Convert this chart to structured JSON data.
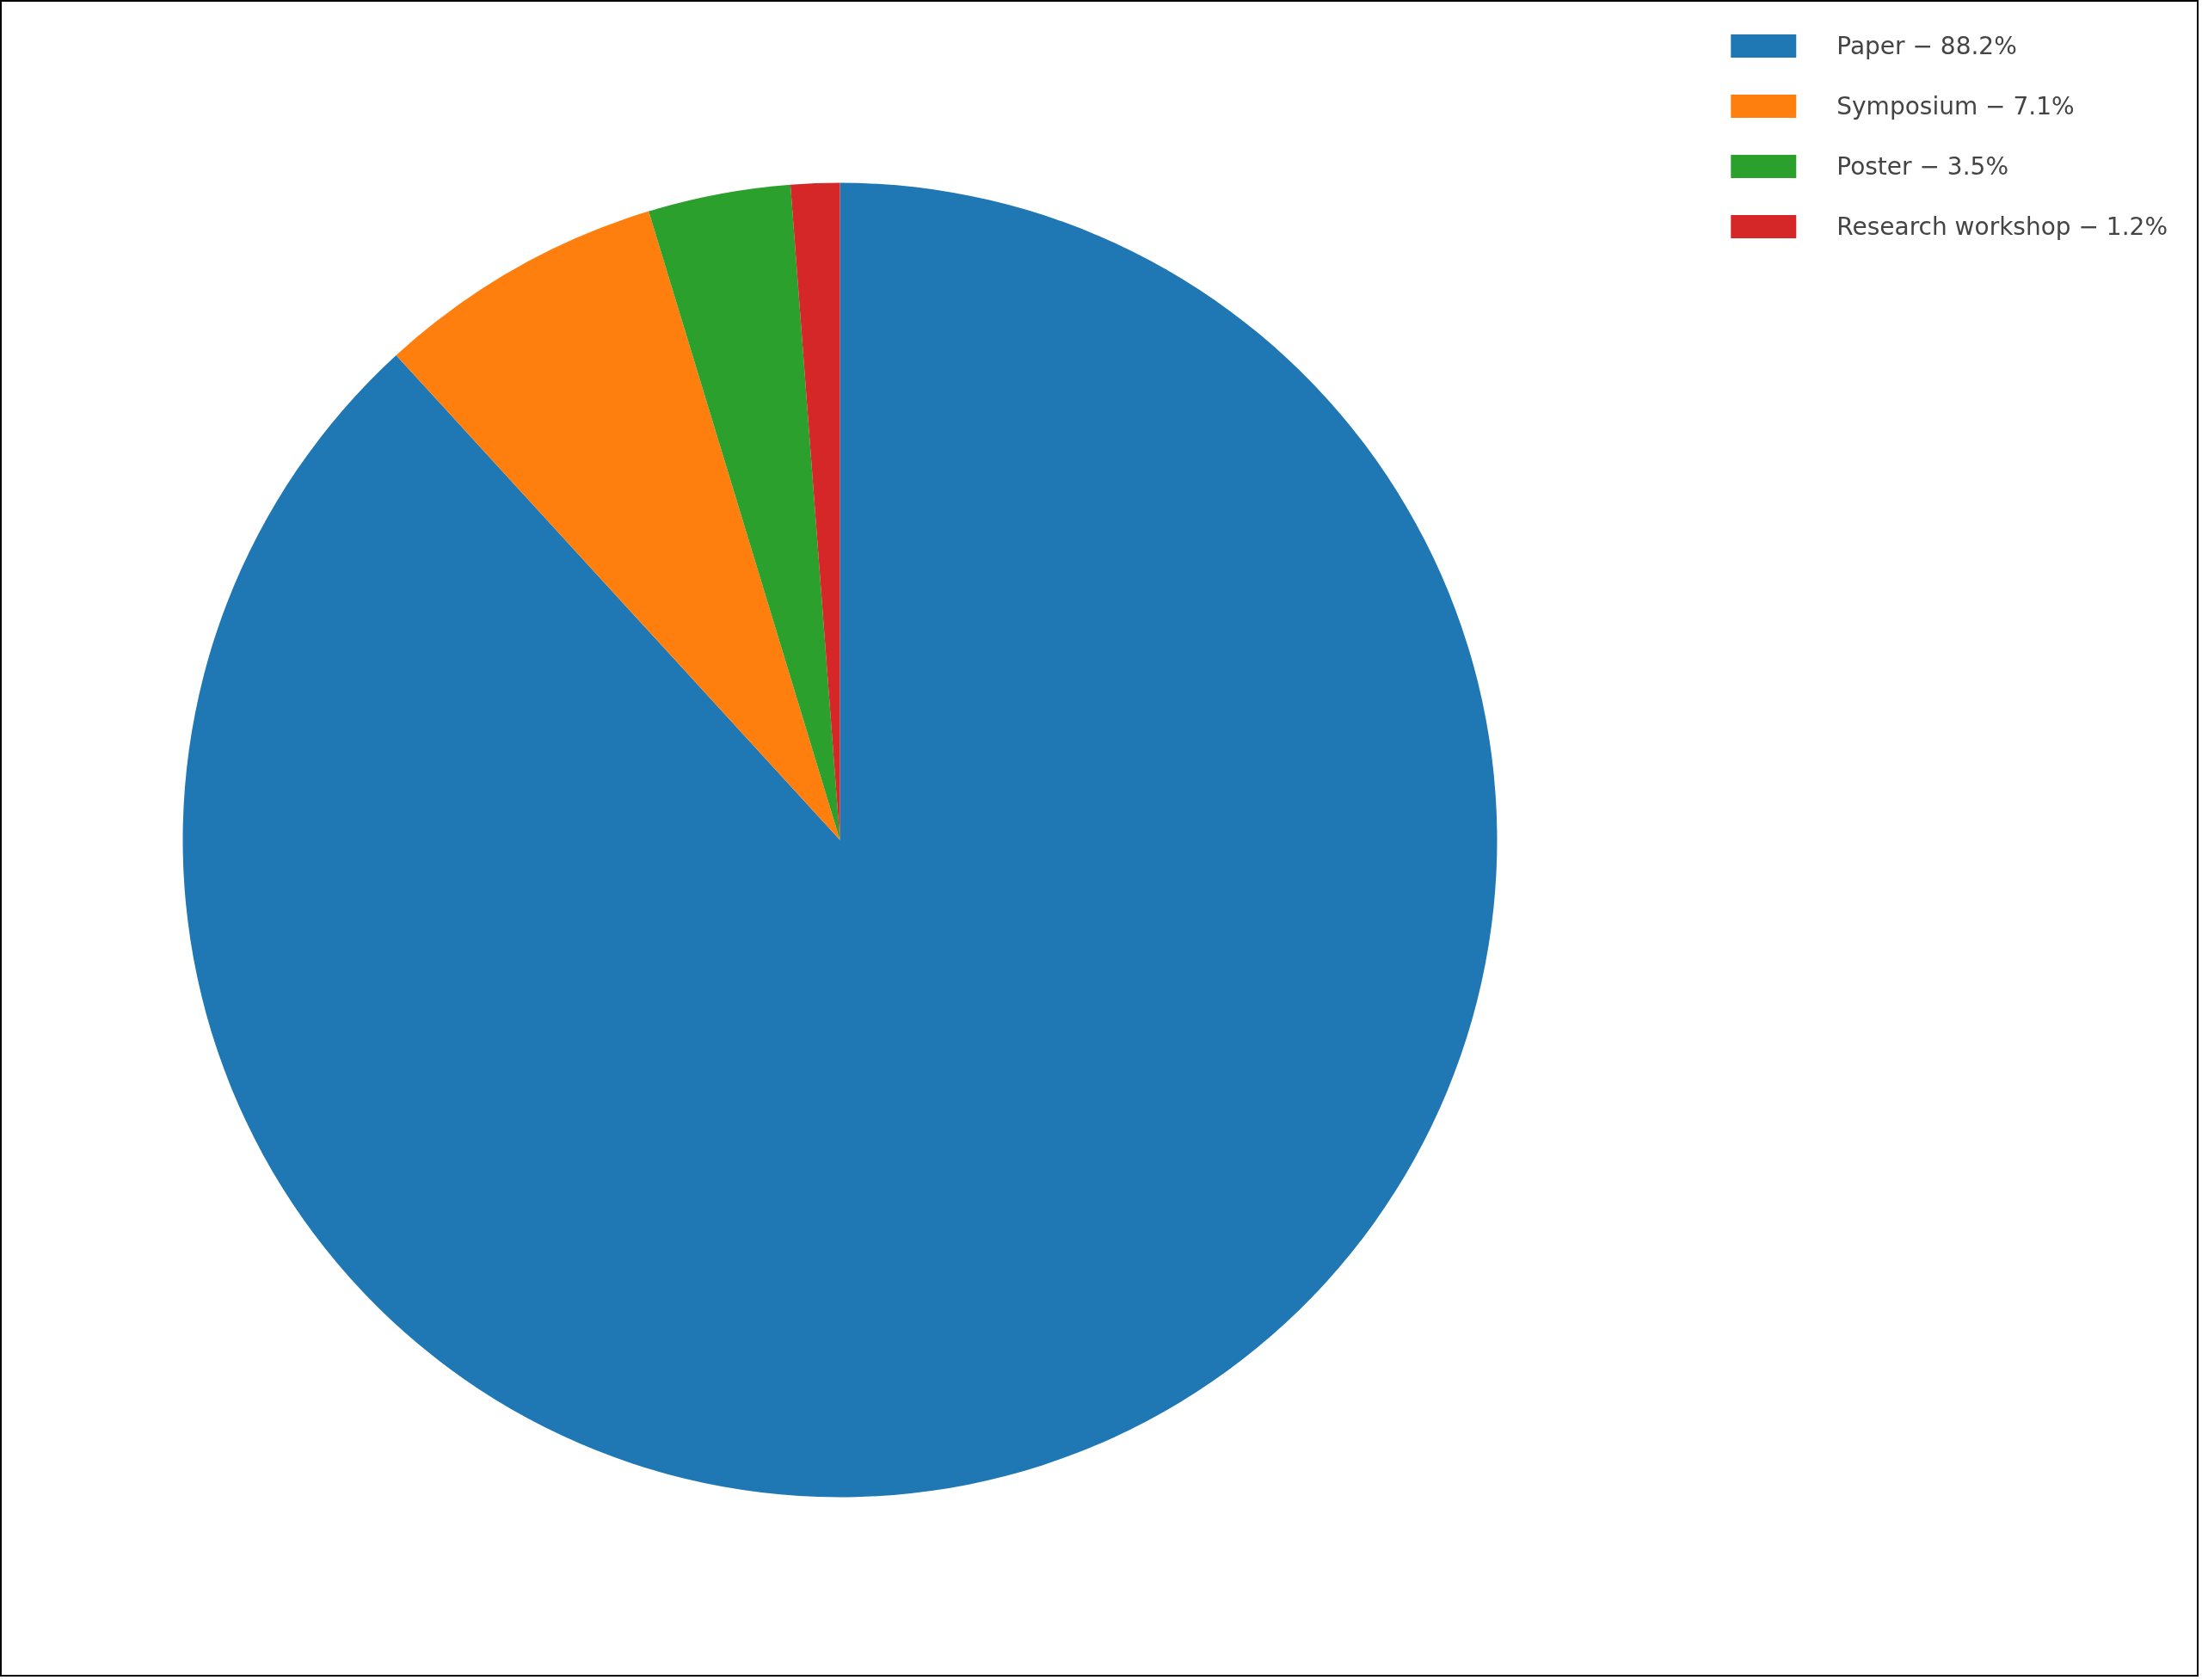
{
  "chart_data": {
    "type": "pie",
    "categories": [
      "Paper − 88.2%",
      "Symposium − 7.1%",
      "Poster − 3.5%",
      "Research workshop − 1.2%"
    ],
    "values": [
      88.2,
      7.1,
      3.5,
      1.2
    ],
    "colors": [
      "#1f77b4",
      "#ff7f0e",
      "#2ca02c",
      "#d62728"
    ],
    "legend": "top right"
  }
}
